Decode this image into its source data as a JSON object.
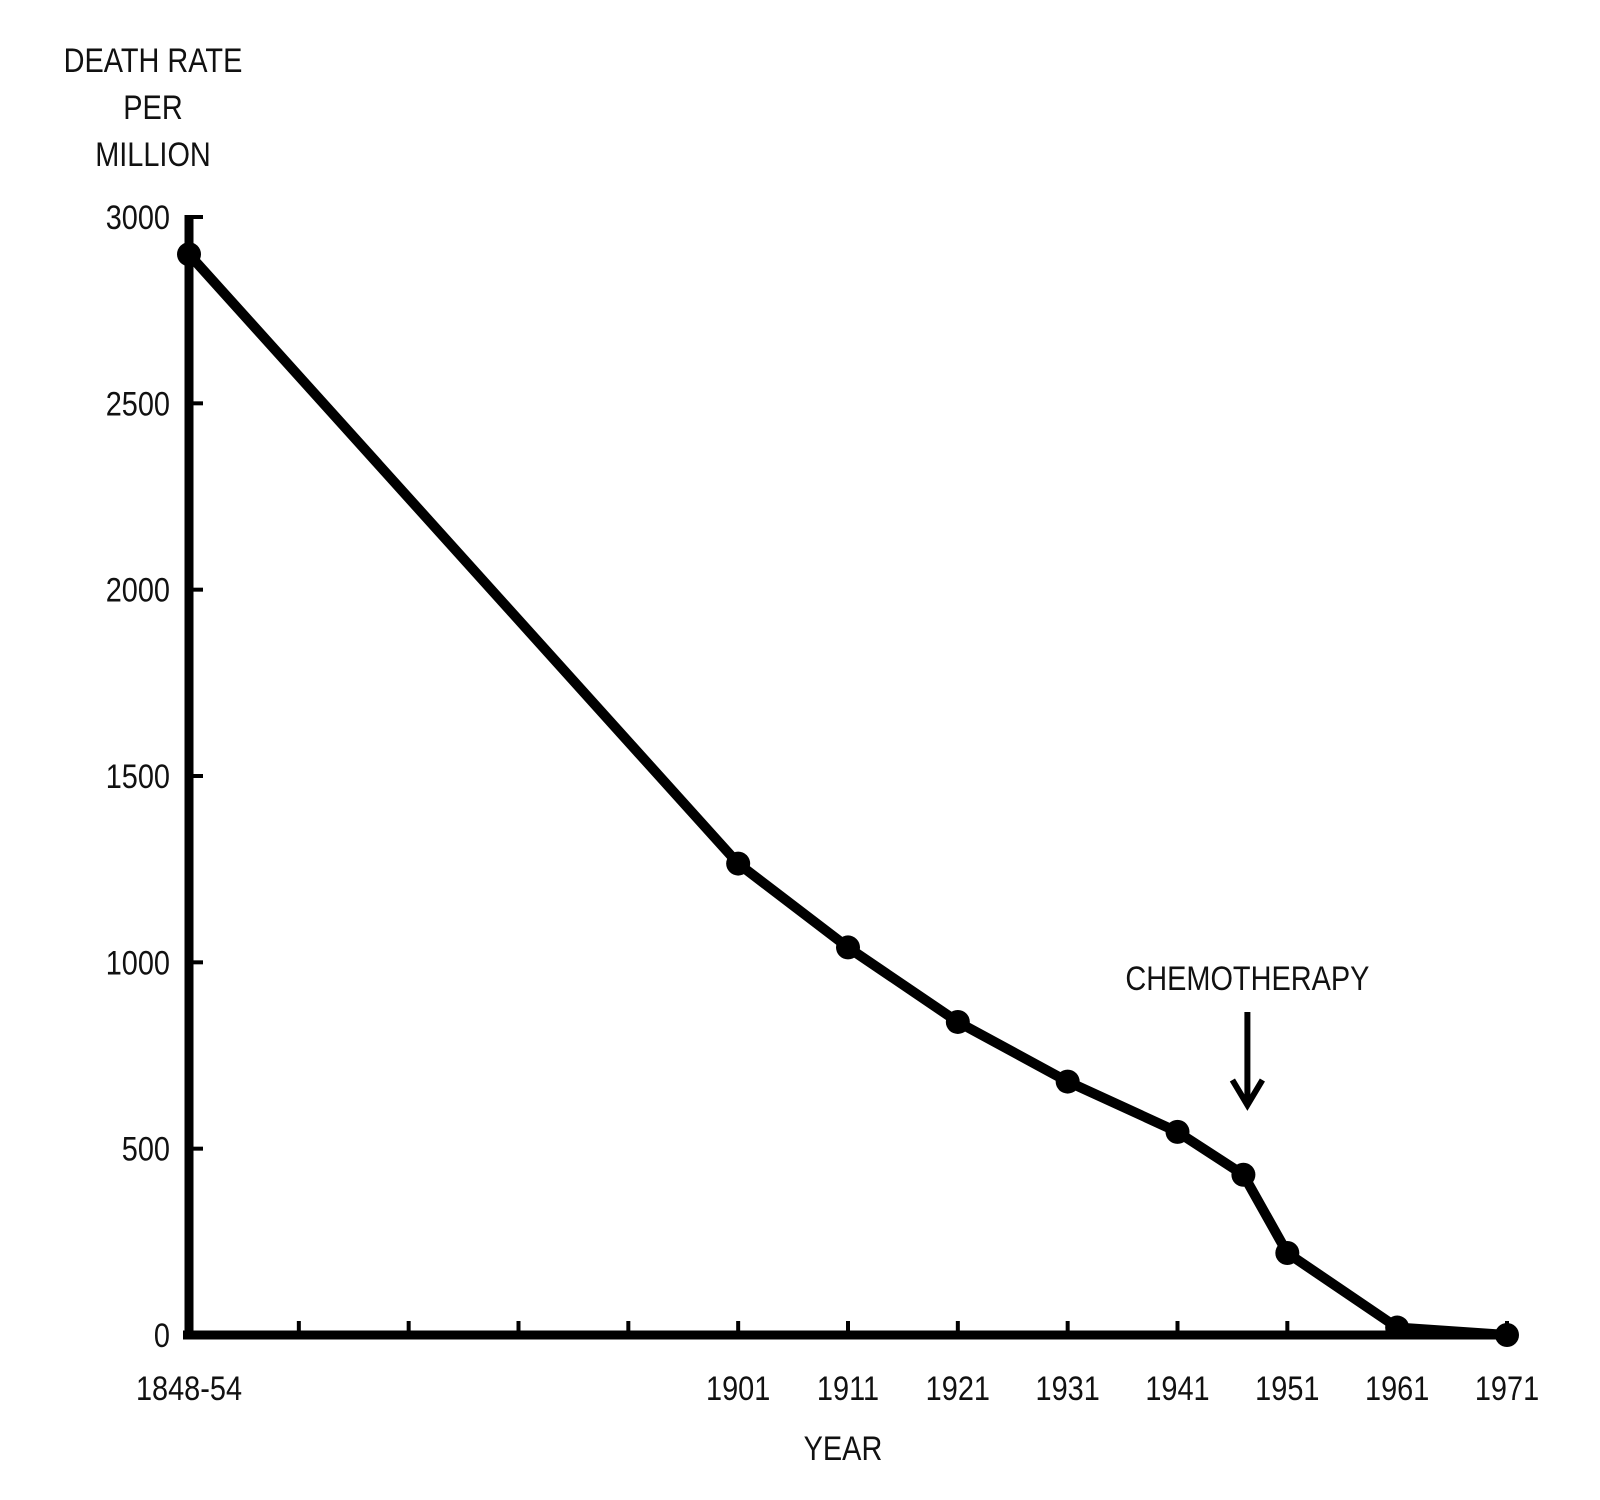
{
  "chart_data": {
    "type": "line",
    "title": "",
    "ylabel_lines": [
      "DEATH RATE",
      "PER",
      "MILLION"
    ],
    "xlabel": "YEAR",
    "ylim": [
      0,
      3000
    ],
    "xlim": [
      1851,
      1971
    ],
    "yticks": [
      0,
      500,
      1000,
      1500,
      2000,
      2500,
      3000
    ],
    "xticks": [
      1851,
      1861,
      1871,
      1881,
      1891,
      1901,
      1911,
      1921,
      1931,
      1941,
      1951,
      1961,
      1971
    ],
    "xtick_labels": [
      {
        "x": 1851,
        "label": "1848-54"
      },
      {
        "x": 1901,
        "label": "1901"
      },
      {
        "x": 1911,
        "label": "1911"
      },
      {
        "x": 1921,
        "label": "1921"
      },
      {
        "x": 1931,
        "label": "1931"
      },
      {
        "x": 1941,
        "label": "1941"
      },
      {
        "x": 1951,
        "label": "1951"
      },
      {
        "x": 1961,
        "label": "1961"
      },
      {
        "x": 1971,
        "label": "1971"
      }
    ],
    "series": [
      {
        "name": "Death rate per million",
        "x": [
          1851,
          1901,
          1911,
          1921,
          1931,
          1941,
          1947,
          1951,
          1961,
          1971
        ],
        "y": [
          2900,
          1265,
          1040,
          840,
          680,
          545,
          430,
          220,
          20,
          0
        ]
      }
    ],
    "annotations": [
      {
        "text": "CHEMOTHERAPY",
        "x": 1947,
        "arrow": "down"
      }
    ],
    "grid": false,
    "color": "#000000"
  }
}
